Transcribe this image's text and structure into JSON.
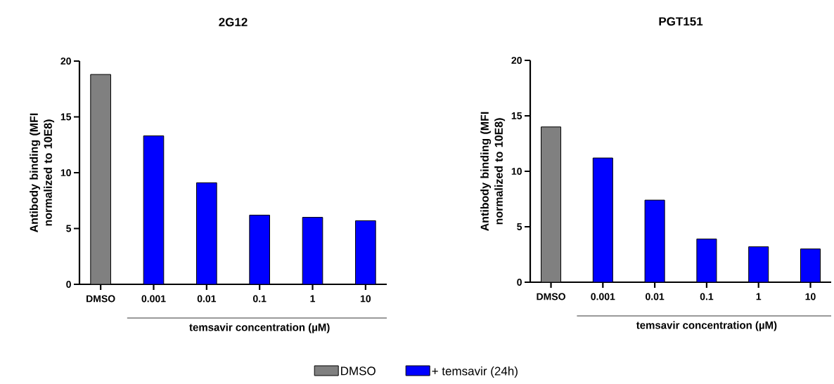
{
  "chart_data": [
    {
      "type": "bar",
      "title": "2G12",
      "categories": [
        "DMSO",
        "0.001",
        "0.01",
        "0.1",
        "1",
        "10"
      ],
      "xlabel": "temsavir concentration (µM)",
      "ylabel": "Antibody binding (MFI normalized to 10E8)",
      "series": [
        {
          "name": "DMSO",
          "color": "#808080",
          "values": [
            18.8,
            null,
            null,
            null,
            null,
            null
          ]
        },
        {
          "name": "+ temsavir (24h)",
          "color": "#0000ff",
          "values": [
            null,
            13.3,
            9.1,
            6.2,
            6.0,
            5.7
          ]
        }
      ],
      "ylim": [
        0,
        20
      ],
      "yticks": [
        0,
        5,
        10,
        15,
        20
      ],
      "legend": "bottom",
      "grid": false
    },
    {
      "type": "bar",
      "title": "PGT151",
      "categories": [
        "DMSO",
        "0.001",
        "0.01",
        "0.1",
        "1",
        "10"
      ],
      "xlabel": "temsavir concentration (µM)",
      "ylabel": "Antibody binding (MFI normalized to 10E8)",
      "series": [
        {
          "color": "#808080",
          "values": [
            14.0,
            null,
            null,
            null,
            null,
            null
          ]
        },
        {
          "color": "#0000ff",
          "values": [
            null,
            11.2,
            7.4,
            3.9,
            3.2,
            3.0
          ]
        }
      ],
      "ylim": [
        0,
        20
      ],
      "yticks": [
        0,
        5,
        10,
        15,
        20
      ],
      "grid": false
    }
  ]
}
